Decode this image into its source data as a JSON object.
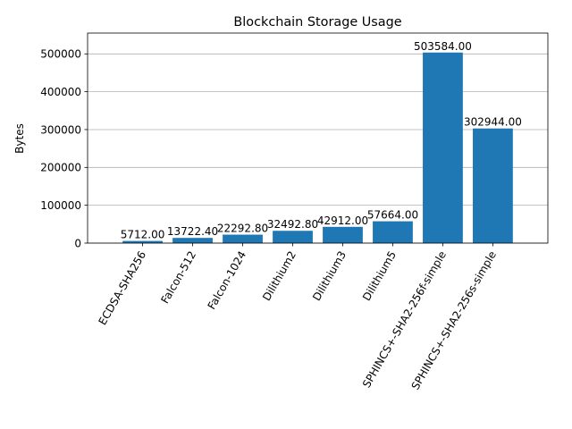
{
  "chart_data": {
    "type": "bar",
    "title": "Blockchain Storage Usage",
    "xlabel": "",
    "ylabel": "Bytes",
    "categories": [
      "ECDSA-SHA256",
      "Falcon-512",
      "Falcon-1024",
      "Dilithium2",
      "Dilithium3",
      "Dilithium5",
      "SPHINCS+-SHA2-256f-simple",
      "SPHINCS+-SHA2-256s-simple"
    ],
    "values": [
      5712.0,
      13722.4,
      22292.8,
      32492.8,
      42912.0,
      57664.0,
      503584.0,
      302944.0
    ],
    "value_labels": [
      "5712.00",
      "13722.40",
      "22292.80",
      "32492.80",
      "42912.00",
      "57664.00",
      "503584.00",
      "302944.00"
    ],
    "ylim": [
      0,
      555000
    ],
    "yticks": [
      0,
      100000,
      200000,
      300000,
      400000,
      500000
    ],
    "ytick_labels": [
      "0",
      "100000",
      "200000",
      "300000",
      "400000",
      "500000"
    ],
    "grid": "y",
    "bar_color": "#1f77b4"
  }
}
